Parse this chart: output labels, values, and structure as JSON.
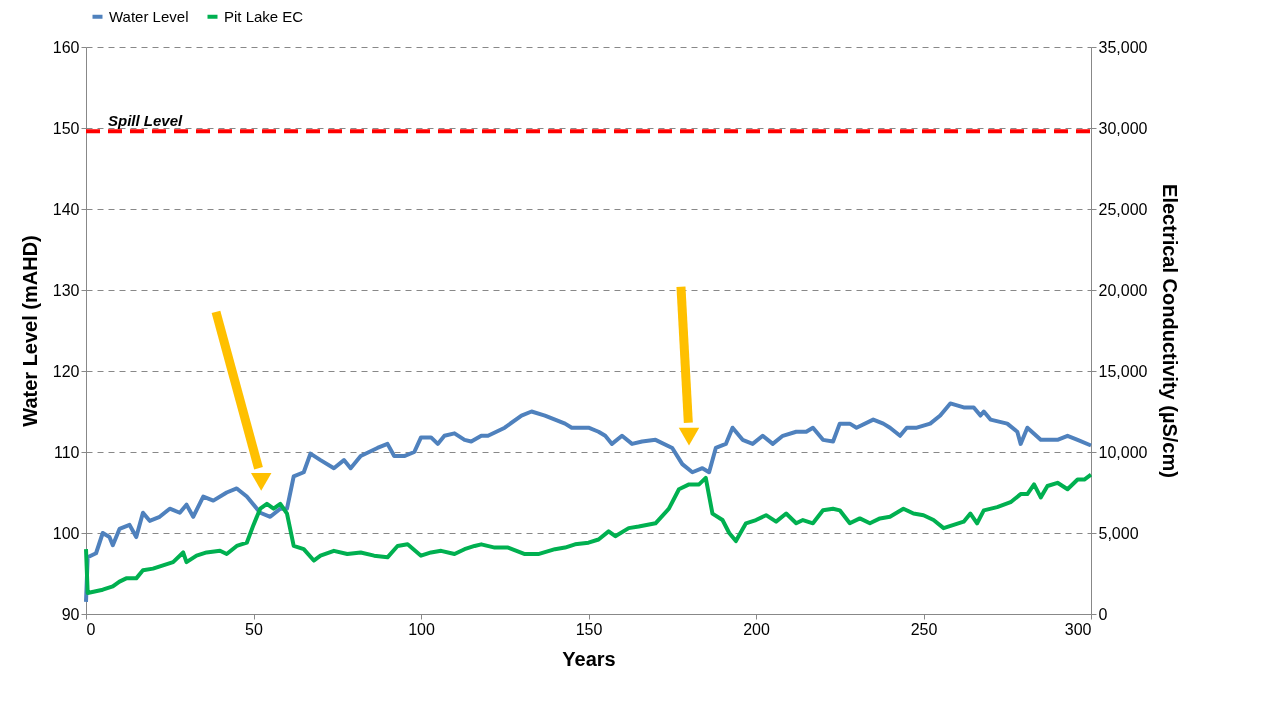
{
  "chart_data": {
    "type": "line",
    "xlabel": "Years",
    "ylabel": "Water Level (mAHD)",
    "y2label": "Electrical Conductivity (µS/cm)",
    "xlim": [
      0,
      300
    ],
    "xticks": [
      0,
      50,
      100,
      150,
      200,
      250,
      300
    ],
    "ylim": [
      90,
      160
    ],
    "yticks": [
      90,
      100,
      110,
      120,
      130,
      140,
      150,
      160
    ],
    "y2lim": [
      0,
      35000
    ],
    "y2ticks": [
      0,
      {
        "value": 5000,
        "label": "5,000"
      },
      {
        "value": 10000,
        "label": "10,000"
      },
      {
        "value": 15000,
        "label": "15,000"
      },
      {
        "value": 20000,
        "label": "20,000"
      },
      {
        "value": 25000,
        "label": "25,000"
      },
      {
        "value": 30000,
        "label": "30,000"
      },
      {
        "value": 35000,
        "label": "35,000"
      }
    ],
    "grid": "y",
    "legend": "top",
    "line_style": "solid",
    "marker": "none",
    "ref_lines": [
      {
        "axis": "y",
        "value": 149.6,
        "label": "Spill Level",
        "color": "#ff0000",
        "line_style": "dashed"
      }
    ],
    "series": [
      {
        "name": "Water Level",
        "color": "#4f81bd",
        "x": [
          0,
          0.5,
          3,
          5,
          7,
          8,
          10,
          13,
          15,
          17,
          19,
          22,
          25,
          28,
          30,
          32,
          35,
          38,
          42,
          45,
          48,
          52,
          55,
          58,
          60,
          62,
          65,
          67,
          70,
          74,
          77,
          79,
          82,
          87,
          90,
          92,
          95,
          98,
          100,
          103,
          105,
          107,
          110,
          113,
          115,
          118,
          120,
          125,
          130,
          133,
          137,
          140,
          143,
          145,
          150,
          153,
          155,
          157,
          160,
          163,
          166,
          170,
          175,
          178,
          181,
          184,
          186,
          188,
          191,
          193,
          196,
          199,
          202,
          205,
          208,
          212,
          215,
          217,
          220,
          223,
          225,
          228,
          230,
          235,
          238,
          240,
          243,
          245,
          248,
          252,
          255,
          258,
          262,
          265,
          267,
          268,
          270,
          275,
          278,
          279,
          281,
          285,
          290,
          293,
          296,
          300
        ],
        "values": [
          91.5,
          97,
          97.5,
          100,
          99.5,
          98.5,
          100.5,
          101,
          99.5,
          102.5,
          101.5,
          102,
          103,
          102.5,
          103.5,
          102,
          104.5,
          104,
          105,
          105.5,
          104.5,
          102.5,
          102,
          103,
          103,
          107,
          107.5,
          109.8,
          109,
          108,
          109,
          108,
          109.5,
          110.5,
          111,
          109.5,
          109.5,
          110,
          111.8,
          111.8,
          111,
          112,
          112.3,
          111.5,
          111.3,
          112,
          112,
          113,
          114.5,
          115,
          114.5,
          114,
          113.5,
          113,
          113,
          112.5,
          112,
          111,
          112,
          111,
          111.3,
          111.5,
          110.5,
          108.5,
          107.5,
          108,
          107.5,
          110.5,
          111,
          113,
          111.5,
          111,
          112,
          111,
          112,
          112.5,
          112.5,
          113,
          111.5,
          111.3,
          113.5,
          113.5,
          113,
          114,
          113.5,
          113,
          112,
          113,
          113,
          113.5,
          114.5,
          116,
          115.5,
          115.5,
          114.5,
          115,
          114,
          113.5,
          112.5,
          111,
          113,
          111.5,
          111.5,
          112,
          111.5,
          110.8
        ]
      },
      {
        "name": "Pit Lake EC",
        "color": "#00b050",
        "axis": "y2",
        "x": [
          0,
          0.5,
          5,
          8,
          10,
          12,
          15,
          17,
          20,
          23,
          26,
          29,
          30,
          33,
          36,
          40,
          42,
          45,
          48,
          50,
          52,
          54,
          56,
          58,
          60,
          62,
          65,
          68,
          70,
          74,
          78,
          82,
          86,
          90,
          93,
          96,
          100,
          103,
          106,
          110,
          113,
          116,
          118,
          122,
          126,
          131,
          135,
          140,
          143,
          146,
          150,
          153,
          156,
          158,
          162,
          165,
          170,
          174,
          177,
          180,
          183,
          185,
          187,
          190,
          192,
          194,
          197,
          200,
          203,
          206,
          209,
          212,
          214,
          217,
          220,
          223,
          225,
          228,
          231,
          234,
          237,
          240,
          244,
          247,
          250,
          253,
          256,
          259,
          262,
          264,
          266,
          268,
          272,
          276,
          279,
          281,
          283,
          285,
          287,
          290,
          293,
          296,
          298,
          300
        ],
        "values": [
          4000,
          1300,
          1500,
          1700,
          2000,
          2200,
          2200,
          2700,
          2800,
          3000,
          3200,
          3800,
          3200,
          3600,
          3800,
          3900,
          3700,
          4200,
          4400,
          5500,
          6500,
          6800,
          6500,
          6800,
          6200,
          4200,
          4000,
          3300,
          3600,
          3900,
          3700,
          3800,
          3600,
          3500,
          4200,
          4300,
          3600,
          3800,
          3900,
          3700,
          4000,
          4200,
          4300,
          4100,
          4100,
          3700,
          3700,
          4000,
          4100,
          4300,
          4400,
          4600,
          5100,
          4800,
          5300,
          5400,
          5600,
          6500,
          7700,
          8000,
          8000,
          8400,
          6200,
          5800,
          5000,
          4500,
          5600,
          5800,
          6100,
          5700,
          6200,
          5600,
          5800,
          5600,
          6400,
          6500,
          6400,
          5600,
          5900,
          5600,
          5900,
          6000,
          6500,
          6200,
          6100,
          5800,
          5300,
          5500,
          5700,
          6200,
          5600,
          6400,
          6600,
          6900,
          7400,
          7400,
          8000,
          7200,
          7900,
          8100,
          7700,
          8300,
          8300,
          8600
        ]
      }
    ]
  }
}
